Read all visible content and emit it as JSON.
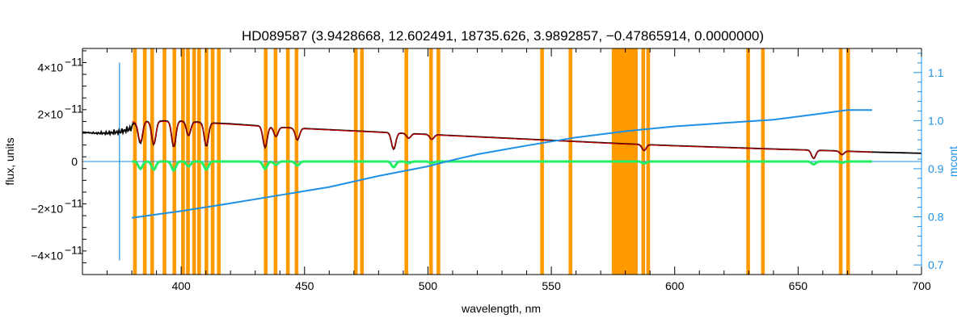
{
  "chart_data": {
    "type": "line",
    "title": "HD089587    (3.9428668, 12.602491, 18735.626, 3.9892857, −0.47865914, 0.0000000)",
    "xlabel": "wavelength, nm",
    "ylabel": "flux, units",
    "y2label": "mcont",
    "xlim": [
      360,
      700
    ],
    "ylim": [
      -4.8e-11,
      4.8e-11
    ],
    "y2lim": [
      0.68,
      1.15
    ],
    "xticks": [
      {
        "v": 400,
        "label": "400"
      },
      {
        "v": 450,
        "label": "450"
      },
      {
        "v": 500,
        "label": "500"
      },
      {
        "v": 550,
        "label": "550"
      },
      {
        "v": 600,
        "label": "600"
      },
      {
        "v": 650,
        "label": "650"
      },
      {
        "v": 700,
        "label": "700"
      }
    ],
    "yticks": [
      {
        "v": 4e-11,
        "base": "4×10",
        "exp": "−11"
      },
      {
        "v": 2e-11,
        "base": "2×10",
        "exp": "−11"
      },
      {
        "v": 0,
        "base": "0",
        "exp": ""
      },
      {
        "v": -2e-11,
        "base": "−2×10",
        "exp": "−11"
      },
      {
        "v": -4e-11,
        "base": "−4×10",
        "exp": "−11"
      }
    ],
    "y2ticks": [
      {
        "v": 0.7,
        "label": "0.7"
      },
      {
        "v": 0.8,
        "label": "0.8"
      },
      {
        "v": 0.9,
        "label": "0.9"
      },
      {
        "v": 1.0,
        "label": "1.0"
      },
      {
        "v": 1.1,
        "label": "1.1"
      }
    ],
    "masked_ranges": [
      [
        380.5,
        382
      ],
      [
        384.5,
        386
      ],
      [
        387.5,
        389
      ],
      [
        392.5,
        394
      ],
      [
        396.5,
        398
      ],
      [
        400,
        401.5
      ],
      [
        402,
        403.5
      ],
      [
        404.5,
        406
      ],
      [
        406.5,
        408
      ],
      [
        409.5,
        411
      ],
      [
        412,
        413.5
      ],
      [
        414.5,
        416
      ],
      [
        433.5,
        435
      ],
      [
        437.5,
        439
      ],
      [
        442.5,
        444
      ],
      [
        446,
        447.5
      ],
      [
        470,
        471.5
      ],
      [
        472.5,
        474
      ],
      [
        490.5,
        492
      ],
      [
        500.5,
        502
      ],
      [
        503.5,
        505
      ],
      [
        545.5,
        547
      ],
      [
        557,
        558.5
      ],
      [
        574.5,
        585
      ],
      [
        586.5,
        588
      ],
      [
        588.5,
        590
      ],
      [
        629,
        630.5
      ],
      [
        635,
        636.5
      ],
      [
        666.5,
        668
      ],
      [
        669.5,
        671
      ]
    ],
    "series": [
      {
        "name": "",
        "axis": "left",
        "color": "#000000",
        "x": [
          360,
          365,
          370,
          375,
          380,
          385,
          390,
          400,
          410,
          420,
          440,
          460,
          480,
          500,
          520,
          540,
          560,
          580,
          600,
          620,
          640,
          660,
          680,
          700
        ],
        "y": [
          1.25e-11,
          1.25e-11,
          1.3e-11,
          1.4e-11,
          1.6e-11,
          1.7e-11,
          1.72e-11,
          1.72e-11,
          1.65e-11,
          1.6e-11,
          1.45e-11,
          1.35e-11,
          1.25e-11,
          1.15e-11,
          1.05e-11,
          9.5e-12,
          8.5e-12,
          7.5e-12,
          6.7e-12,
          6e-12,
          5.3e-12,
          4.7e-12,
          4e-12,
          3.5e-12
        ]
      },
      {
        "name": "",
        "axis": "left",
        "color": "#c00000",
        "x": [
          380,
          390,
          400,
          410,
          420,
          440,
          460,
          480,
          500,
          520,
          540,
          560,
          580,
          600,
          620,
          640,
          660,
          680
        ],
        "y": [
          1.68e-11,
          1.7e-11,
          1.7e-11,
          1.63e-11,
          1.58e-11,
          1.44e-11,
          1.34e-11,
          1.24e-11,
          1.14e-11,
          1.04e-11,
          9.4e-12,
          8.4e-12,
          7.4e-12,
          6.6e-12,
          5.9e-12,
          5.2e-12,
          4.6e-12,
          4e-12
        ]
      },
      {
        "name": "",
        "axis": "left",
        "color": "#22ee66",
        "x": [
          380,
          680
        ],
        "y": [
          0,
          0
        ]
      },
      {
        "name": "",
        "axis": "right",
        "color": "#1e90e6",
        "x": [
          380,
          400,
          420,
          440,
          460,
          480,
          500,
          510,
          520,
          540,
          560,
          580,
          600,
          620,
          640,
          660,
          670,
          680
        ],
        "y": [
          0.798,
          0.812,
          0.828,
          0.845,
          0.862,
          0.885,
          0.905,
          0.918,
          0.93,
          0.948,
          0.965,
          0.978,
          0.988,
          0.995,
          1.002,
          1.015,
          1.022,
          1.022
        ]
      }
    ],
    "absorption_lines": [
      {
        "x": 383.5,
        "depth": 9e-12
      },
      {
        "x": 388.9,
        "depth": 1e-11
      },
      {
        "x": 397.0,
        "depth": 1.1e-11
      },
      {
        "x": 403.0,
        "depth": 6e-12
      },
      {
        "x": 410.2,
        "depth": 1e-11
      },
      {
        "x": 434.0,
        "depth": 9e-12
      },
      {
        "x": 438.4,
        "depth": 4e-12
      },
      {
        "x": 447.1,
        "depth": 5e-12
      },
      {
        "x": 486.1,
        "depth": 7e-12
      },
      {
        "x": 492.2,
        "depth": 2e-12
      },
      {
        "x": 501.6,
        "depth": 2e-12
      },
      {
        "x": 587.6,
        "depth": 2.5e-12
      },
      {
        "x": 656.3,
        "depth": 3.5e-12
      },
      {
        "x": 667.8,
        "depth": 1.5e-12
      }
    ],
    "reference_line": {
      "x": 375,
      "ymin": -4.2e-11,
      "ymax": 4.2e-11,
      "color": "#1e90e6"
    },
    "grid": false
  }
}
